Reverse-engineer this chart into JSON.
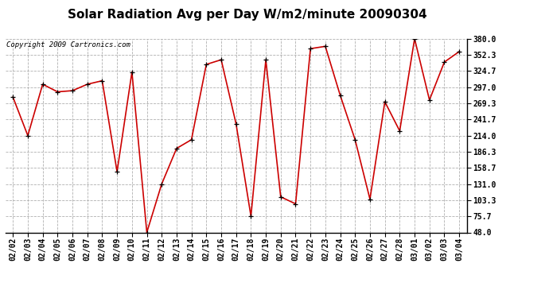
{
  "title": "Solar Radiation Avg per Day W/m2/minute 20090304",
  "copyright": "Copyright 2009 Cartronics.com",
  "dates": [
    "02/02",
    "02/03",
    "02/04",
    "02/05",
    "02/06",
    "02/07",
    "02/08",
    "02/09",
    "02/10",
    "02/11",
    "02/12",
    "02/13",
    "02/14",
    "02/15",
    "02/16",
    "02/17",
    "02/18",
    "02/19",
    "02/20",
    "02/21",
    "02/22",
    "02/23",
    "02/24",
    "02/25",
    "02/26",
    "02/27",
    "02/28",
    "03/01",
    "03/02",
    "03/03",
    "03/04"
  ],
  "values": [
    280.0,
    214.0,
    302.0,
    289.0,
    291.0,
    302.0,
    308.0,
    152.0,
    323.0,
    48.0,
    131.0,
    192.0,
    207.0,
    336.0,
    344.0,
    234.0,
    75.7,
    344.0,
    109.0,
    97.0,
    363.0,
    367.0,
    283.0,
    207.0,
    105.0,
    272.0,
    222.0,
    380.0,
    275.0,
    340.0,
    358.0
  ],
  "line_color": "#cc0000",
  "marker": "+",
  "marker_color": "#000000",
  "background_color": "#ffffff",
  "grid_color": "#b0b0b0",
  "ylim": [
    48.0,
    380.0
  ],
  "yticks": [
    48.0,
    75.7,
    103.3,
    131.0,
    158.7,
    186.3,
    214.0,
    241.7,
    269.3,
    297.0,
    324.7,
    352.3,
    380.0
  ],
  "title_fontsize": 11,
  "tick_fontsize": 7,
  "copyright_fontsize": 6.5
}
